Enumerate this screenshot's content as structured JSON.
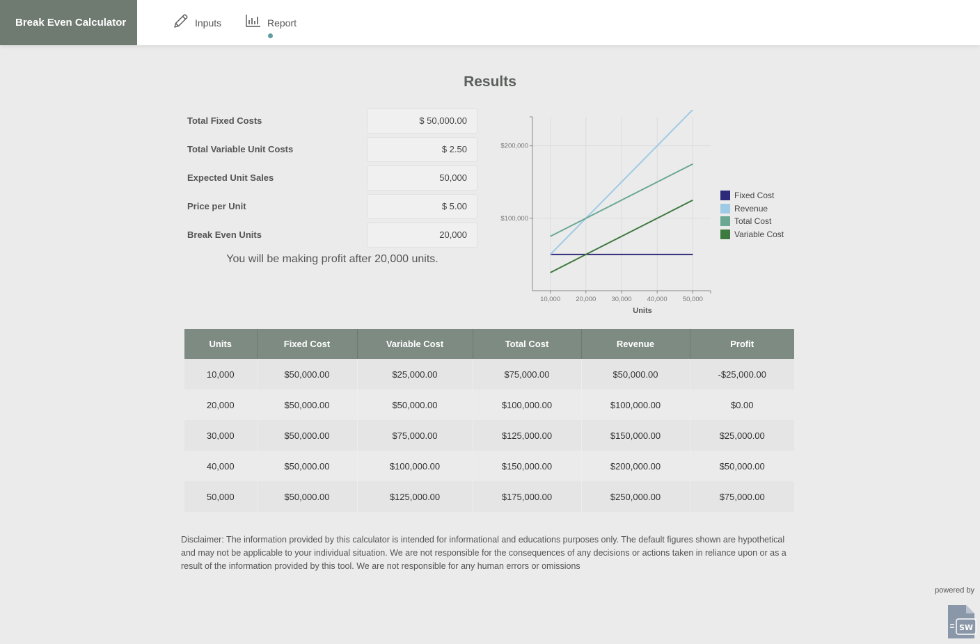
{
  "header": {
    "brand": "Break Even Calculator",
    "tabs": [
      {
        "label": "Inputs",
        "icon": "pencil-icon"
      },
      {
        "label": "Report",
        "icon": "bar-chart-icon",
        "active": true
      }
    ]
  },
  "results": {
    "title": "Results",
    "fields": [
      {
        "label": "Total Fixed Costs",
        "value": "$ 50,000.00"
      },
      {
        "label": "Total Variable Unit Costs",
        "value": "$ 2.50"
      },
      {
        "label": "Expected Unit Sales",
        "value": "50,000"
      },
      {
        "label": "Price per Unit",
        "value": "$ 5.00"
      },
      {
        "label": "Break Even Units",
        "value": "20,000"
      }
    ],
    "profit_message": "You will be making profit after 20,000 units."
  },
  "chart_data": {
    "type": "line",
    "xlabel": "Units",
    "ylabel": "",
    "x": [
      10000,
      20000,
      30000,
      40000,
      50000
    ],
    "x_tick_labels": [
      "10,000",
      "20,000",
      "30,000",
      "40,000",
      "50,000"
    ],
    "y_tick_labels": [
      "$100,000",
      "$200,000"
    ],
    "y_ticks": [
      100000,
      200000
    ],
    "xlim": [
      5000,
      55000
    ],
    "ylim": [
      0,
      240000
    ],
    "grid": true,
    "legend_position": "right",
    "series": [
      {
        "name": "Fixed Cost",
        "color": "#2e2a7a",
        "values": [
          50000,
          50000,
          50000,
          50000,
          50000
        ]
      },
      {
        "name": "Revenue",
        "color": "#9ecae6",
        "values": [
          50000,
          100000,
          150000,
          200000,
          250000
        ]
      },
      {
        "name": "Total Cost",
        "color": "#6aa893",
        "values": [
          75000,
          100000,
          125000,
          150000,
          175000
        ]
      },
      {
        "name": "Variable Cost",
        "color": "#3d7a3f",
        "values": [
          25000,
          50000,
          75000,
          100000,
          125000
        ]
      }
    ]
  },
  "table": {
    "headers": [
      "Units",
      "Fixed Cost",
      "Variable Cost",
      "Total Cost",
      "Revenue",
      "Profit"
    ],
    "rows": [
      [
        "10,000",
        "$50,000.00",
        "$25,000.00",
        "$75,000.00",
        "$50,000.00",
        "-$25,000.00"
      ],
      [
        "20,000",
        "$50,000.00",
        "$50,000.00",
        "$100,000.00",
        "$100,000.00",
        "$0.00"
      ],
      [
        "30,000",
        "$50,000.00",
        "$75,000.00",
        "$125,000.00",
        "$150,000.00",
        "$25,000.00"
      ],
      [
        "40,000",
        "$50,000.00",
        "$100,000.00",
        "$150,000.00",
        "$200,000.00",
        "$50,000.00"
      ],
      [
        "50,000",
        "$50,000.00",
        "$125,000.00",
        "$175,000.00",
        "$250,000.00",
        "$75,000.00"
      ]
    ]
  },
  "disclaimer": "Disclaimer: The information provided by this calculator is intended for informational and educations purposes only. The default figures shown are hypothetical and may not be applicable to your individual situation. We are not responsible for the consequences of any decisions or actions taken in reliance upon or as a result of the information provided by this tool. We are not responsible for any human errors or omissions",
  "footer": {
    "powered_by": "powered by",
    "logo_text": "SW",
    "logo_color": "#8a97a8"
  }
}
